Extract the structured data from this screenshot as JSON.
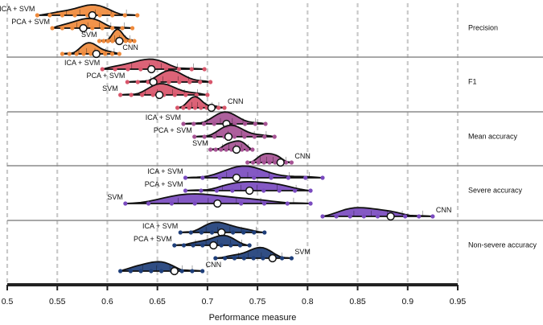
{
  "chart_data": {
    "type": "violin",
    "xlabel": "Performance measure",
    "xlim": [
      0.5,
      0.95
    ],
    "xticks": [
      0.5,
      0.55,
      0.6,
      0.65,
      0.7,
      0.75,
      0.8,
      0.85,
      0.9,
      0.95
    ],
    "grid": "vertical dashed",
    "groups": [
      {
        "metric": "Precision",
        "color": "#ef8a3c",
        "methods": [
          {
            "name": "ICA + SVM",
            "median": 0.585,
            "min": 0.53,
            "max": 0.63
          },
          {
            "name": "PCA + SVM",
            "median": 0.576,
            "min": 0.545,
            "max": 0.625
          },
          {
            "name": "SVM",
            "median": 0.612,
            "min": 0.592,
            "max": 0.627
          },
          {
            "name": "CNN",
            "median": 0.589,
            "min": 0.555,
            "max": 0.612
          }
        ]
      },
      {
        "metric": "F1",
        "color": "#d8566b",
        "methods": [
          {
            "name": "ICA + SVM",
            "median": 0.644,
            "min": 0.595,
            "max": 0.697
          },
          {
            "name": "PCA + SVM",
            "median": 0.646,
            "min": 0.62,
            "max": 0.703
          },
          {
            "name": "SVM",
            "median": 0.652,
            "min": 0.613,
            "max": 0.7
          },
          {
            "name": "CNN",
            "median": 0.704,
            "min": 0.67,
            "max": 0.717
          }
        ]
      },
      {
        "metric": "Mean accuracy",
        "color": "#a65394",
        "methods": [
          {
            "name": "ICA + SVM",
            "median": 0.719,
            "min": 0.676,
            "max": 0.758
          },
          {
            "name": "PCA + SVM",
            "median": 0.721,
            "min": 0.687,
            "max": 0.767
          },
          {
            "name": "SVM",
            "median": 0.729,
            "min": 0.703,
            "max": 0.745
          },
          {
            "name": "CNN",
            "median": 0.773,
            "min": 0.74,
            "max": 0.784
          }
        ]
      },
      {
        "metric": "Severe accuracy",
        "color": "#7a4bbf",
        "methods": [
          {
            "name": "ICA + SVM",
            "median": 0.729,
            "min": 0.678,
            "max": 0.815
          },
          {
            "name": "PCA + SVM",
            "median": 0.742,
            "min": 0.678,
            "max": 0.803
          },
          {
            "name": "SVM",
            "median": 0.71,
            "min": 0.618,
            "max": 0.803
          },
          {
            "name": "CNN",
            "median": 0.883,
            "min": 0.815,
            "max": 0.925
          }
        ]
      },
      {
        "metric": "Non-severe accuracy",
        "color": "#1f3f7a",
        "methods": [
          {
            "name": "ICA + SVM",
            "median": 0.714,
            "min": 0.673,
            "max": 0.757
          },
          {
            "name": "PCA + SVM",
            "median": 0.706,
            "min": 0.667,
            "max": 0.742
          },
          {
            "name": "SVM",
            "median": 0.765,
            "min": 0.708,
            "max": 0.784
          },
          {
            "name": "CNN",
            "median": 0.667,
            "min": 0.613,
            "max": 0.695
          }
        ]
      }
    ]
  }
}
